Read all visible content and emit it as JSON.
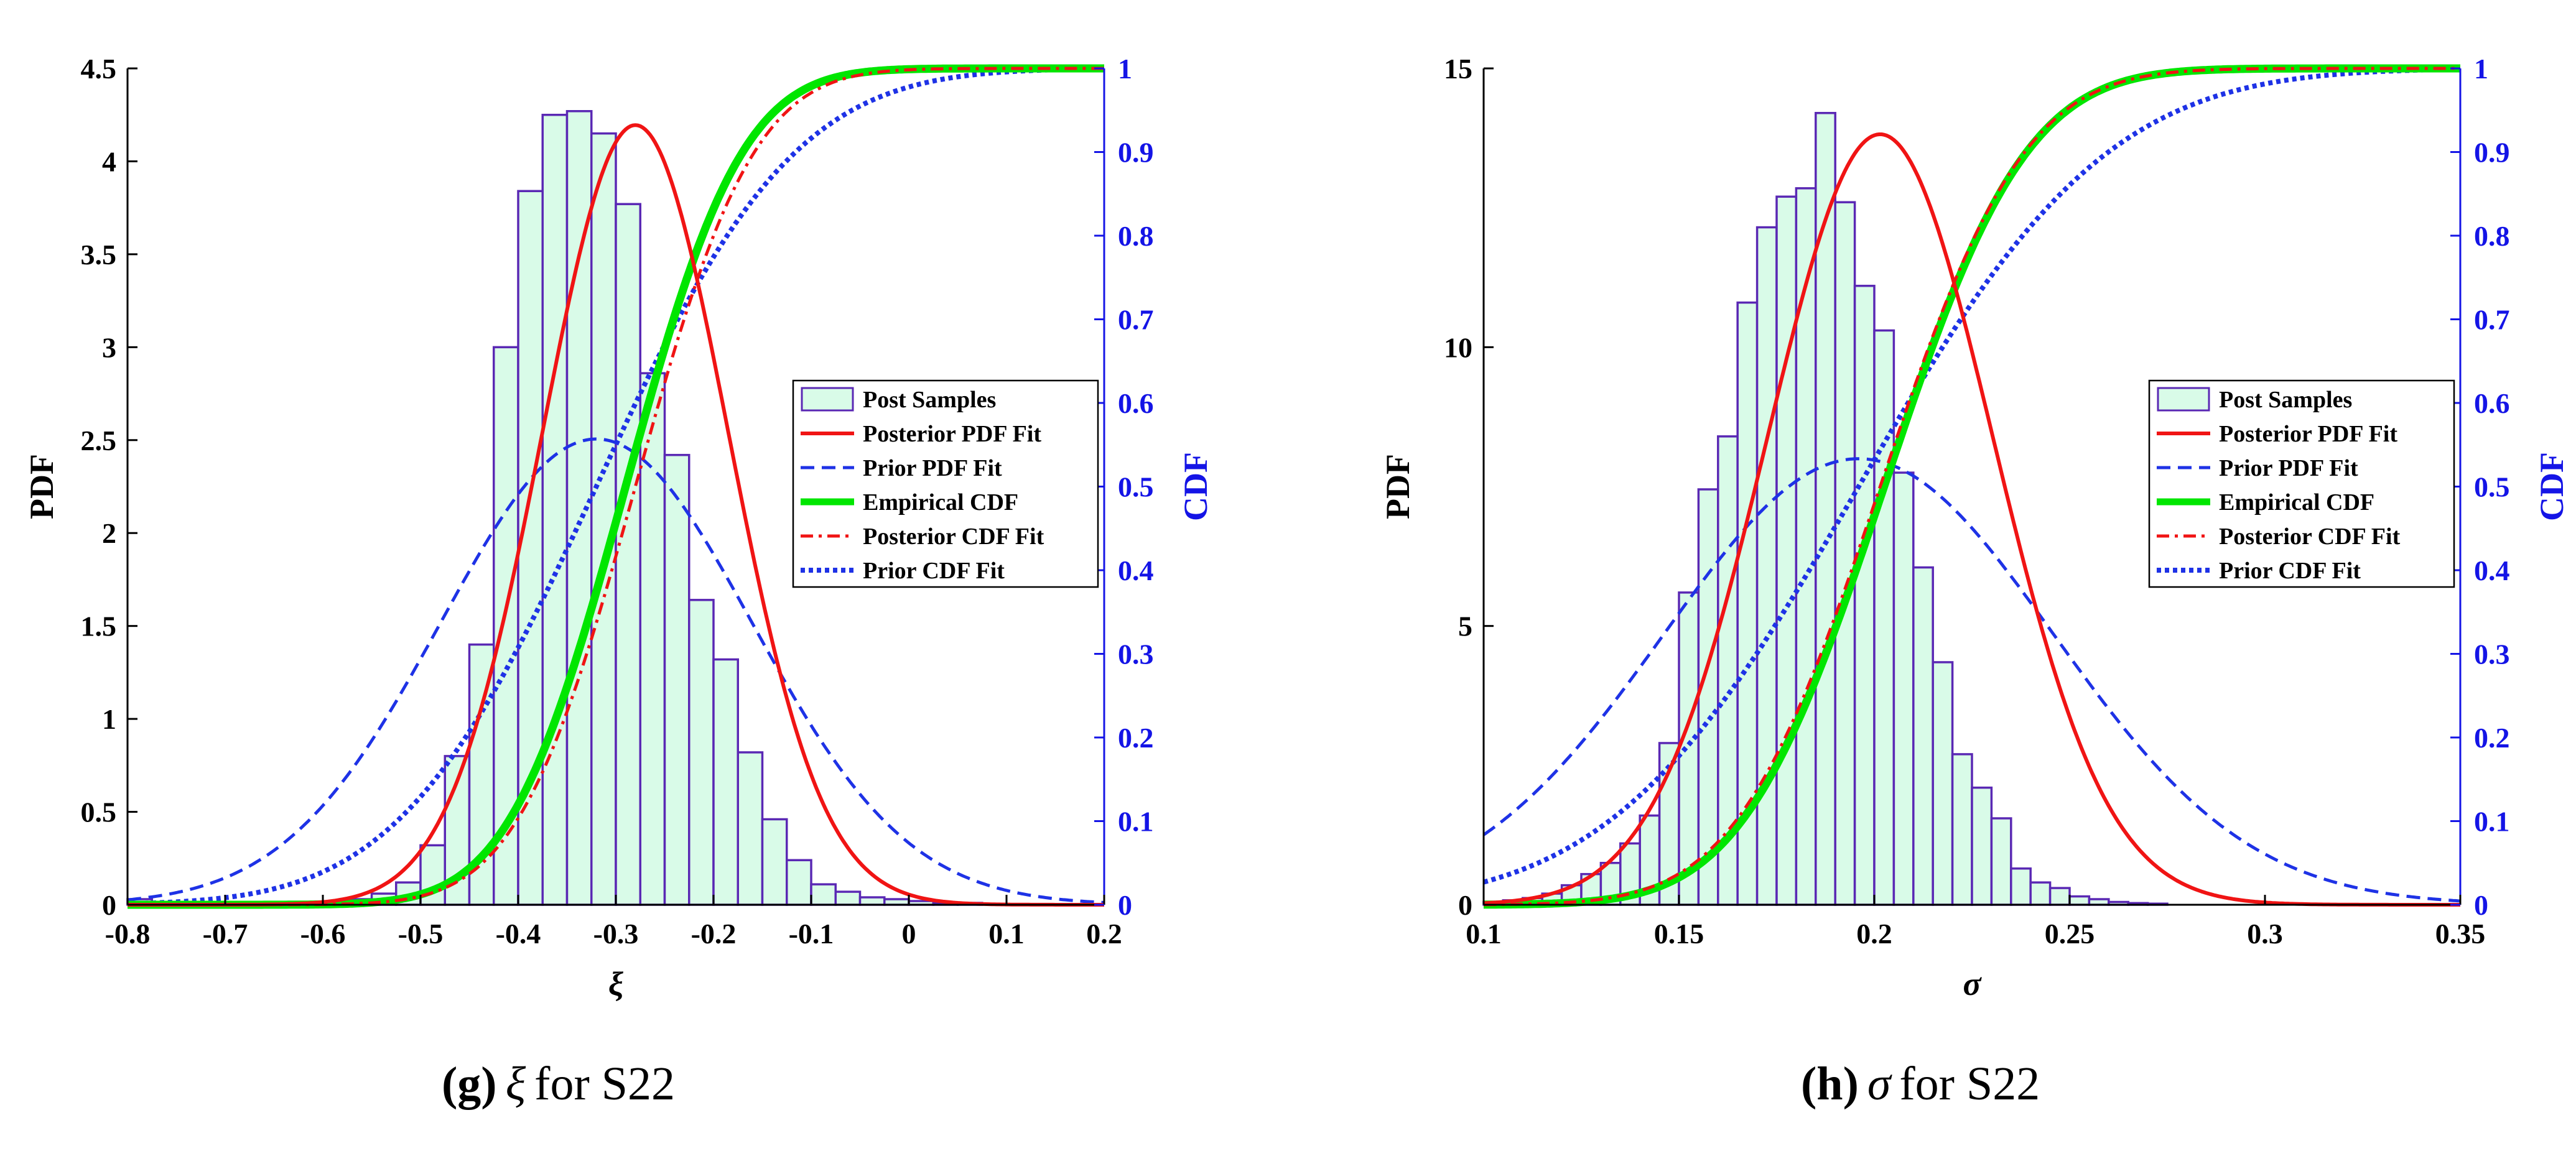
{
  "chart_data": [
    {
      "type": "histogram+line",
      "xlabel": "ξ",
      "ylabel": "PDF",
      "y2label": "CDF",
      "xlim": [
        -0.8,
        0.2
      ],
      "ylim": [
        0,
        4.5
      ],
      "y2lim": [
        0,
        1
      ],
      "xticks": [
        "-0.8",
        "-0.7",
        "-0.6",
        "-0.5",
        "-0.4",
        "-0.3",
        "-0.2",
        "-0.1",
        "0",
        "0.1",
        "0.2"
      ],
      "yticks": [
        "0",
        "0.5",
        "1",
        "1.5",
        "2",
        "2.5",
        "3",
        "3.5",
        "4",
        "4.5"
      ],
      "y2ticks": [
        "0",
        "0.1",
        "0.2",
        "0.3",
        "0.4",
        "0.5",
        "0.6",
        "0.7",
        "0.8",
        "0.9",
        "1"
      ],
      "hist": {
        "bin_edges": [
          -0.8,
          -0.775,
          -0.75,
          -0.725,
          -0.7,
          -0.675,
          -0.65,
          -0.625,
          -0.6,
          -0.575,
          -0.55,
          -0.525,
          -0.5,
          -0.475,
          -0.45,
          -0.425,
          -0.4,
          -0.375,
          -0.35,
          -0.325,
          -0.3,
          -0.275,
          -0.25,
          -0.225,
          -0.2,
          -0.175,
          -0.15,
          -0.125,
          -0.1,
          -0.075,
          -0.05,
          -0.025,
          0.0,
          0.025,
          0.05,
          0.075,
          0.1,
          0.125,
          0.15,
          0.175,
          0.2
        ],
        "counts": [
          0.03,
          0.01,
          0.0,
          0.0,
          0.0,
          0.0,
          0.0,
          0.0,
          0.01,
          0.03,
          0.06,
          0.12,
          0.32,
          0.8,
          1.4,
          3.0,
          3.84,
          4.25,
          4.27,
          4.15,
          3.77,
          2.86,
          2.42,
          1.64,
          1.32,
          0.82,
          0.46,
          0.24,
          0.11,
          0.07,
          0.04,
          0.03,
          0.02,
          0.01,
          0.01,
          0.0,
          0.0,
          0.0,
          0.0,
          0.0
        ]
      },
      "series": [
        {
          "name": "Posterior PDF Fit",
          "dist": "normal",
          "mean": -0.28,
          "sd": 0.0951,
          "axis": "left",
          "kind": "pdf"
        },
        {
          "name": "Prior PDF Fit",
          "dist": "normal",
          "mean": -0.32,
          "sd": 0.1592,
          "axis": "left",
          "kind": "pdf"
        },
        {
          "name": "Empirical CDF",
          "dist": "normal",
          "mean": -0.29,
          "sd": 0.0935,
          "axis": "right",
          "kind": "cdf"
        },
        {
          "name": "Posterior CDF Fit",
          "dist": "normal",
          "mean": -0.28,
          "sd": 0.0951,
          "axis": "right",
          "kind": "cdf"
        },
        {
          "name": "Prior CDF Fit",
          "dist": "normal",
          "mean": -0.32,
          "sd": 0.1592,
          "axis": "right",
          "kind": "cdf"
        }
      ],
      "legend_entries": [
        "Post Samples",
        "Posterior PDF Fit",
        "Prior PDF Fit",
        "Empirical CDF",
        "Posterior CDF Fit",
        "Prior CDF Fit"
      ],
      "legend_position": "center-right"
    },
    {
      "type": "histogram+line",
      "xlabel": "σ",
      "ylabel": "PDF",
      "y2label": "CDF",
      "xlim": [
        0.1,
        0.35
      ],
      "ylim": [
        0,
        15
      ],
      "y2lim": [
        0,
        1
      ],
      "xticks": [
        "0.1",
        "0.15",
        "0.2",
        "0.25",
        "0.3",
        "0.35"
      ],
      "yticks": [
        "0",
        "5",
        "10",
        "15"
      ],
      "y2ticks": [
        "0",
        "0.1",
        "0.2",
        "0.3",
        "0.4",
        "0.5",
        "0.6",
        "0.7",
        "0.8",
        "0.9",
        "1"
      ],
      "hist": {
        "bin_edges": [
          0.1,
          0.105,
          0.11,
          0.115,
          0.12,
          0.125,
          0.13,
          0.135,
          0.14,
          0.145,
          0.15,
          0.155,
          0.16,
          0.165,
          0.17,
          0.175,
          0.18,
          0.185,
          0.19,
          0.195,
          0.2,
          0.205,
          0.21,
          0.215,
          0.22,
          0.225,
          0.23,
          0.235,
          0.24,
          0.245,
          0.25,
          0.255,
          0.26,
          0.265,
          0.27,
          0.275,
          0.28,
          0.285,
          0.29,
          0.295,
          0.3,
          0.305,
          0.31
        ],
        "counts": [
          0.05,
          0.08,
          0.12,
          0.2,
          0.35,
          0.55,
          0.75,
          1.1,
          1.6,
          2.9,
          5.6,
          7.45,
          8.4,
          10.8,
          12.15,
          12.7,
          12.85,
          14.2,
          12.6,
          11.1,
          10.3,
          7.75,
          6.05,
          4.35,
          2.7,
          2.1,
          1.55,
          0.65,
          0.4,
          0.3,
          0.15,
          0.1,
          0.05,
          0.03,
          0.02,
          0.0,
          0.0,
          0.0,
          0.0,
          0.0,
          0.0,
          0.0
        ]
      },
      "series": [
        {
          "name": "Posterior PDF Fit",
          "dist": "normal",
          "mean": 0.2015,
          "sd": 0.02887,
          "axis": "left",
          "kind": "pdf"
        },
        {
          "name": "Prior PDF Fit",
          "dist": "normal",
          "mean": 0.196,
          "sd": 0.04987,
          "axis": "left",
          "kind": "pdf"
        },
        {
          "name": "Empirical CDF",
          "dist": "normal",
          "mean": 0.2025,
          "sd": 0.0285,
          "axis": "right",
          "kind": "cdf"
        },
        {
          "name": "Posterior CDF Fit",
          "dist": "normal",
          "mean": 0.2015,
          "sd": 0.02887,
          "axis": "right",
          "kind": "cdf"
        },
        {
          "name": "Prior CDF Fit",
          "dist": "normal",
          "mean": 0.196,
          "sd": 0.04987,
          "axis": "right",
          "kind": "cdf"
        }
      ],
      "legend_entries": [
        "Post Samples",
        "Posterior PDF Fit",
        "Prior PDF Fit",
        "Empirical CDF",
        "Posterior CDF Fit",
        "Prior CDF Fit"
      ],
      "legend_position": "center-right"
    }
  ],
  "captions": [
    {
      "tag": "(g)",
      "symbol": "ξ",
      "text": "for S22"
    },
    {
      "tag": "(h)",
      "symbol": "σ",
      "text": "for S22"
    }
  ],
  "colors": {
    "hist_fill": "#d9fbe8",
    "hist_edge": "#5a28b4",
    "posterior": "#f01414",
    "prior": "#1e32e6",
    "empirical": "#00e600",
    "right_axis": "#1414e6"
  }
}
